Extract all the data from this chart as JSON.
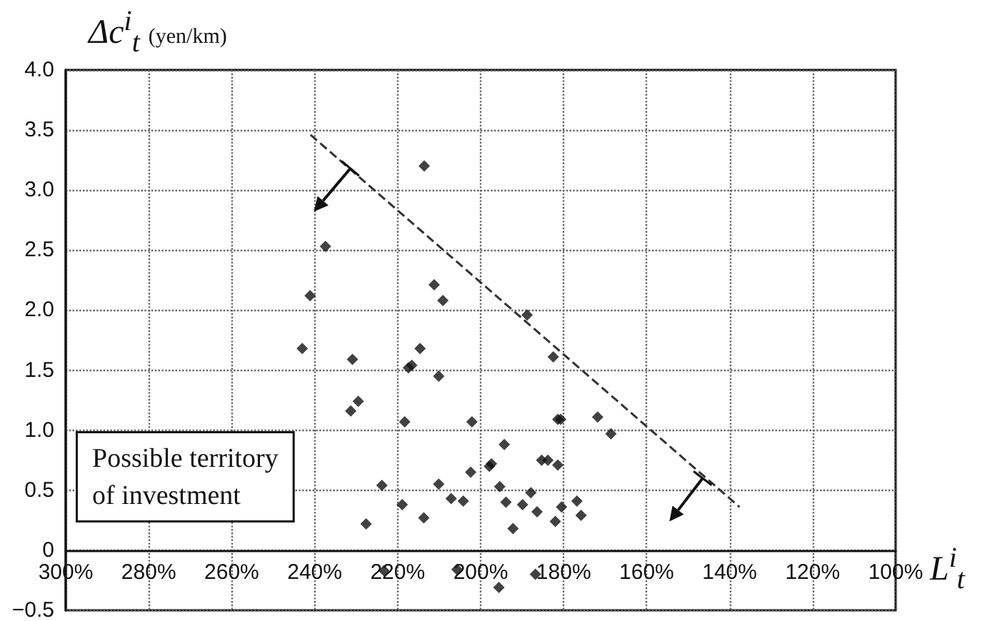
{
  "chart_data": {
    "type": "scatter",
    "xlabel": "L$^{i}$$_{t}$",
    "ylabel": "Δc$^{i}$$_{t}$ (yen/km)",
    "annotations": [
      "Possible territory\nof investment"
    ],
    "xlim": [
      300,
      100
    ],
    "xticks": [
      {
        "value": 300,
        "label": "300%"
      },
      {
        "value": 280,
        "label": "280%"
      },
      {
        "value": 260,
        "label": "260%"
      },
      {
        "value": 240,
        "label": "240%"
      },
      {
        "value": 220,
        "label": "220%"
      },
      {
        "value": 200,
        "label": "200%"
      },
      {
        "value": 180,
        "label": "180%"
      },
      {
        "value": 160,
        "label": "160%"
      },
      {
        "value": 140,
        "label": "140%"
      },
      {
        "value": 120,
        "label": "120%"
      },
      {
        "value": 100,
        "label": "100%"
      }
    ],
    "ylim": [
      -0.5,
      4
    ],
    "yticks": [
      {
        "value": -0.5,
        "label": "−0.5"
      },
      0,
      {
        "value": 0.5,
        "label": "0.5"
      },
      {
        "value": 1,
        "label": "1.0"
      },
      {
        "value": 1.5,
        "label": "1.5"
      },
      {
        "value": 2,
        "label": "2.0"
      },
      {
        "value": 2.5,
        "label": "2.5"
      },
      {
        "value": 3,
        "label": "3.0"
      },
      {
        "value": 3.5,
        "label": "3.5"
      },
      {
        "value": 4,
        "label": "4.0"
      }
    ],
    "grid": true,
    "marker": "diamond",
    "series": [
      {
        "color": "#111111",
        "x": [
          213.6,
          237.4,
          241.1,
          211.2,
          209.1,
          188.8,
          243.0,
          230.9,
          214.6,
          217.4,
          216.6,
          210.1,
          182.5,
          229.5,
          231.3,
          218.3,
          202.1,
          181.4,
          180.7,
          171.8,
          168.6,
          194.3,
          197.9,
          197.4,
          202.4,
          185.3,
          183.8,
          181.4,
          223.8,
          210.1,
          207.1,
          204.2,
          195.4,
          193.9,
          187.9,
          189.9,
          186.4,
          180.5,
          176.8,
          175.8,
          182.0,
          192.2,
          218.9,
          213.7,
          227.6,
          223.3,
          205.7,
          195.6,
          186.8
        ],
        "values": [
          3.2,
          2.53,
          2.12,
          2.21,
          2.08,
          1.96,
          1.68,
          1.59,
          1.68,
          1.52,
          1.54,
          1.45,
          1.61,
          1.24,
          1.16,
          1.07,
          1.07,
          1.09,
          1.09,
          1.11,
          0.97,
          0.88,
          0.7,
          0.72,
          0.65,
          0.75,
          0.75,
          0.71,
          0.54,
          0.55,
          0.43,
          0.41,
          0.53,
          0.4,
          0.48,
          0.38,
          0.32,
          0.36,
          0.41,
          0.29,
          0.24,
          0.18,
          0.38,
          0.27,
          0.22,
          -0.17,
          -0.16,
          -0.31,
          -0.2
        ]
      },
      {
        "type": "line",
        "color": "#333333",
        "line_style": "dashed",
        "marker": "none",
        "x": [
          241.0,
          137.6
        ],
        "values": [
          3.46,
          0.36
        ]
      }
    ]
  }
}
